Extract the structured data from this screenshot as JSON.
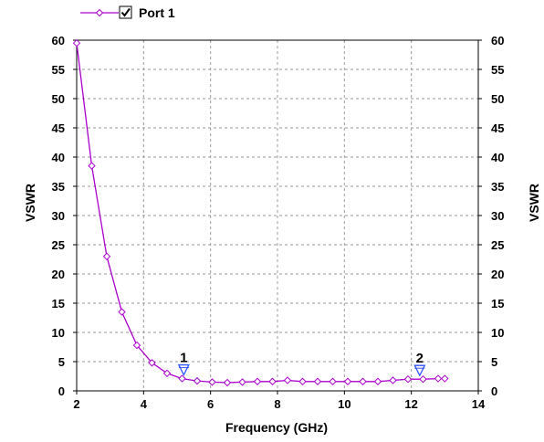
{
  "chart_data": {
    "type": "line",
    "title": "",
    "xlabel": "Frequency (GHz)",
    "ylabel": "VSWR",
    "ylabel_right": "VSWR",
    "xlim": [
      2,
      14
    ],
    "ylim": [
      0,
      60
    ],
    "x_ticks": [
      "2",
      "4",
      "6",
      "8",
      "10",
      "12",
      "14"
    ],
    "y_ticks": [
      "0",
      "5",
      "10",
      "15",
      "20",
      "25",
      "30",
      "35",
      "40",
      "45",
      "50",
      "55",
      "60"
    ],
    "grid": true,
    "legend_position": "top-left",
    "legend_checked": true,
    "series": [
      {
        "name": "Port 1",
        "color": "#aa00cc",
        "marker": "diamond",
        "x": [
          2.0,
          2.45,
          2.9,
          3.35,
          3.8,
          4.25,
          4.7,
          5.15,
          5.6,
          6.05,
          6.5,
          6.95,
          7.4,
          7.85,
          8.3,
          8.75,
          9.2,
          9.65,
          10.1,
          10.55,
          11.0,
          11.45,
          11.9,
          12.35,
          12.8,
          13.0
        ],
        "values": [
          59.5,
          38.5,
          23.0,
          13.5,
          7.8,
          4.8,
          3.0,
          2.1,
          1.7,
          1.5,
          1.4,
          1.5,
          1.6,
          1.6,
          1.8,
          1.6,
          1.6,
          1.6,
          1.6,
          1.6,
          1.6,
          1.8,
          2.0,
          2.0,
          2.1,
          2.1
        ]
      }
    ],
    "markers": [
      {
        "label": "1",
        "x": 5.2,
        "y": 2.1,
        "color": "#3355ff"
      },
      {
        "label": "2",
        "x": 12.25,
        "y": 2.0,
        "color": "#3355ff"
      }
    ]
  }
}
